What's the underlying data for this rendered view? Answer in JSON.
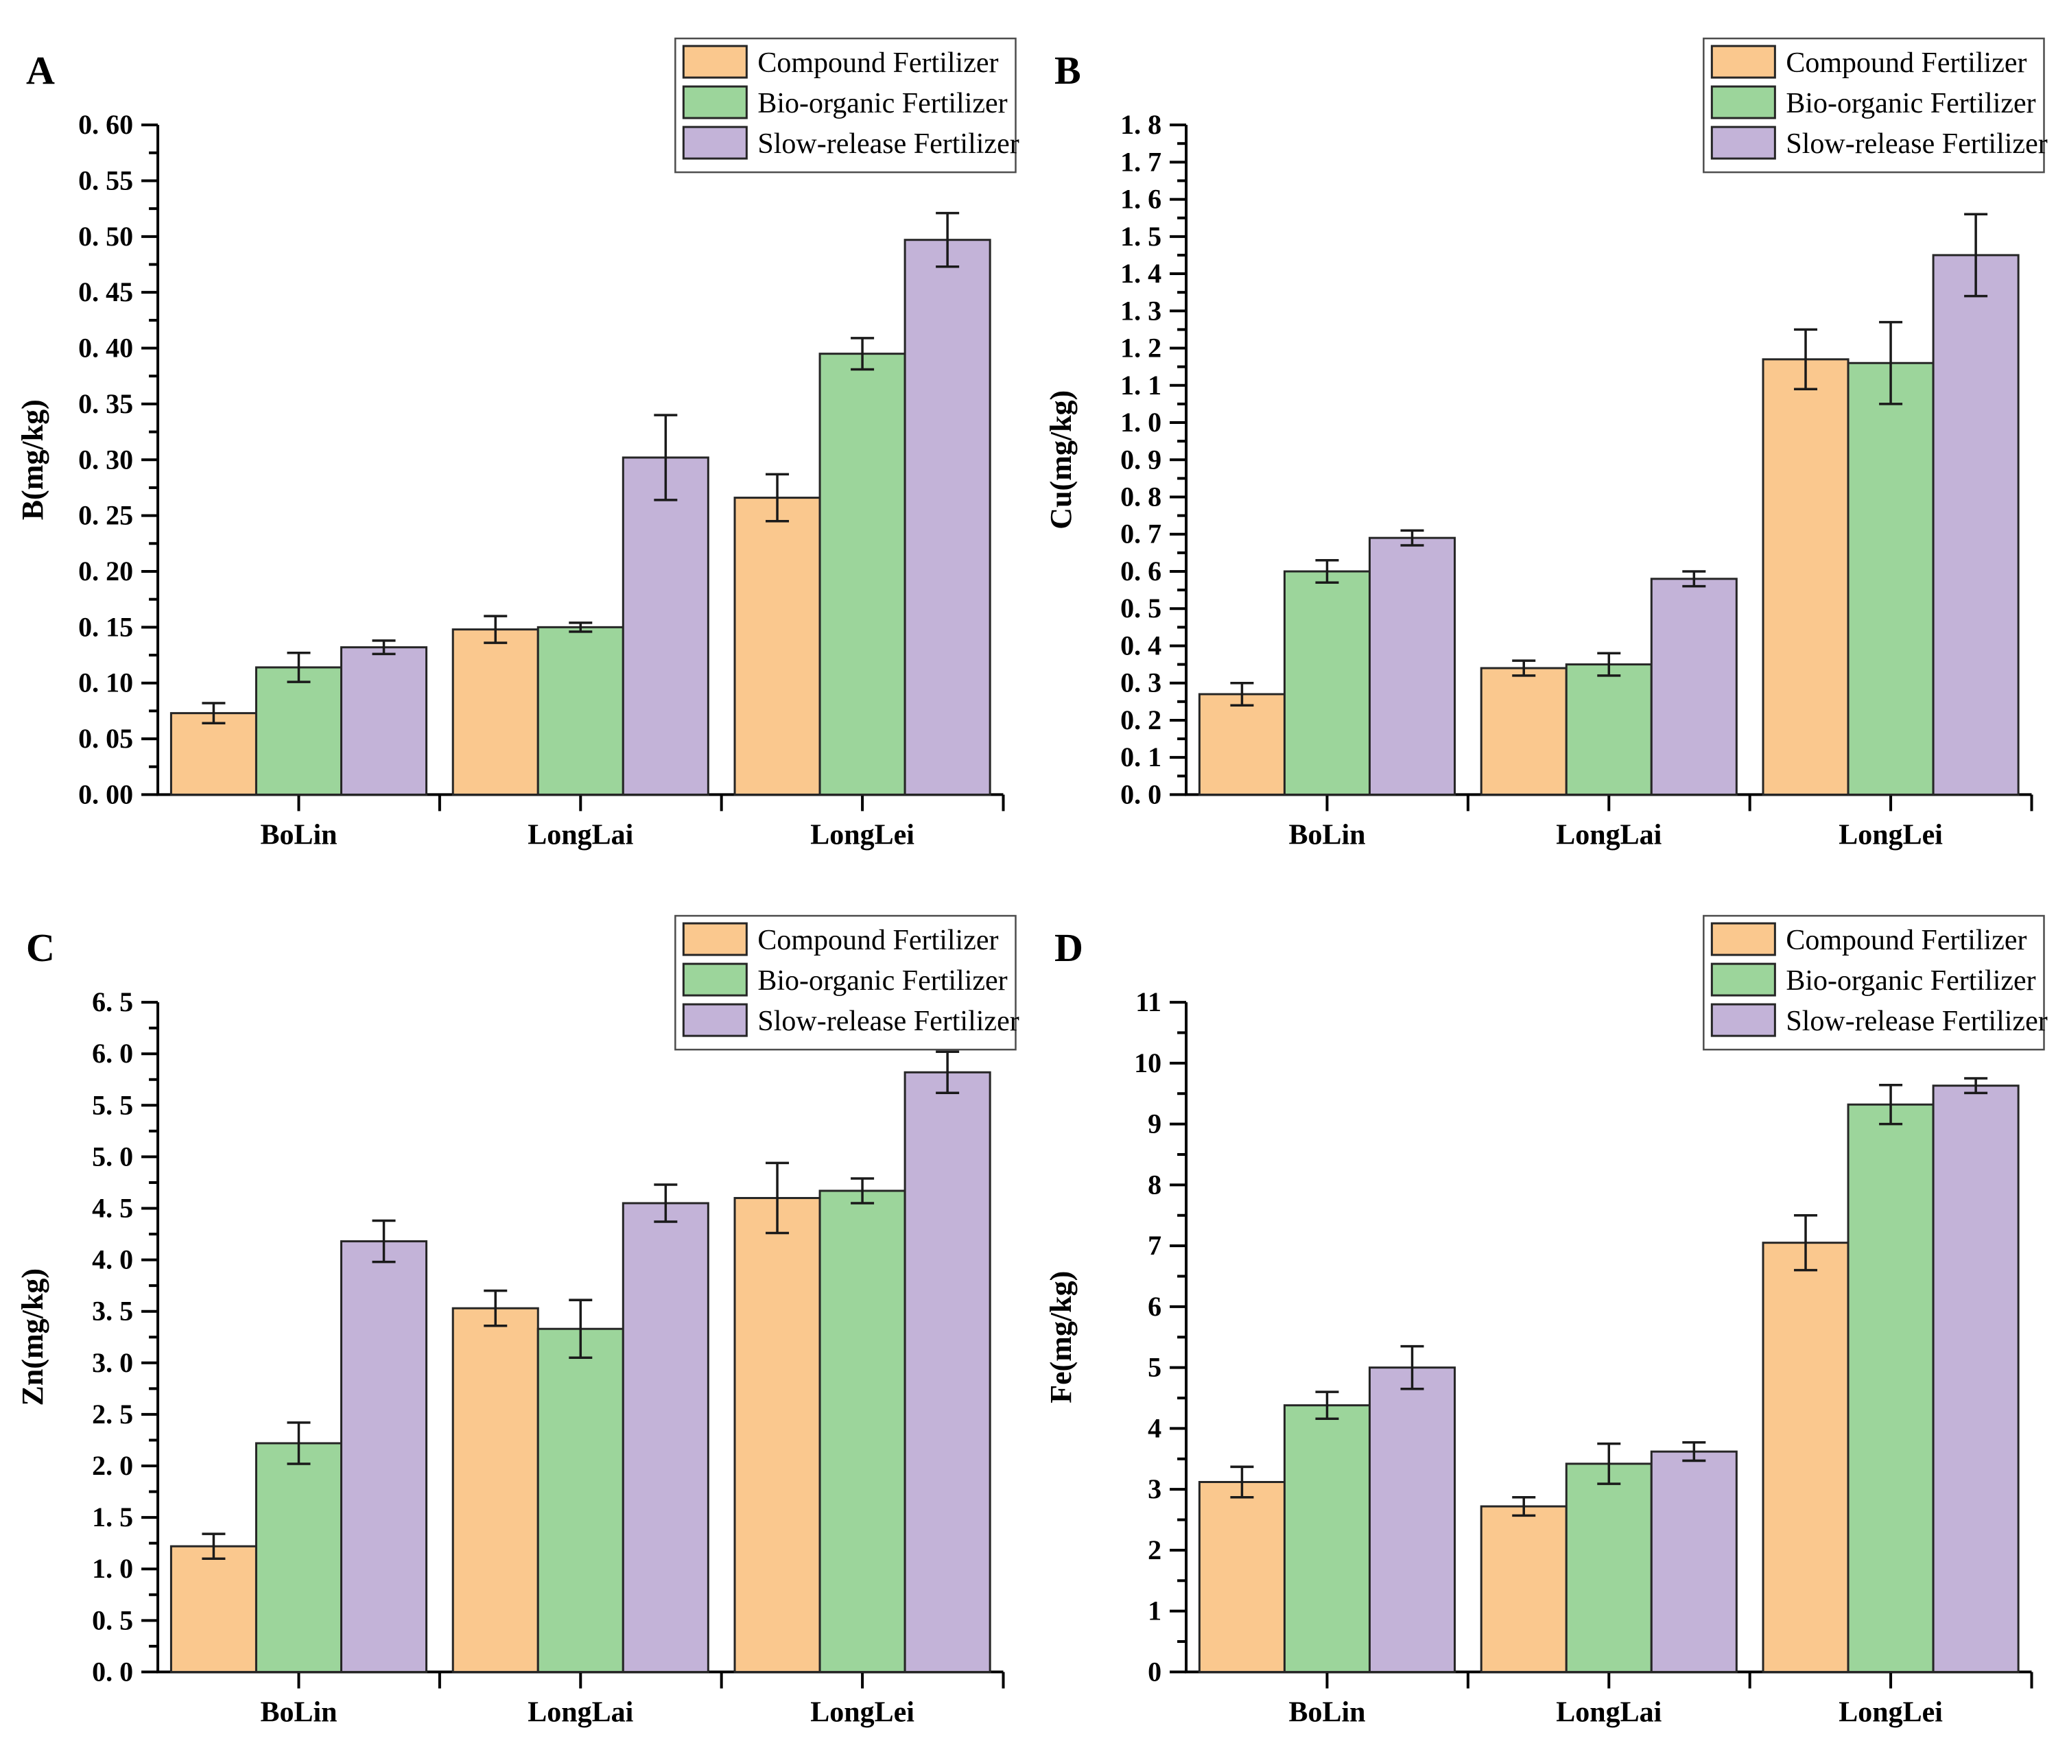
{
  "figure_title": "",
  "legend": {
    "entries": [
      "Compound Fertilizer",
      "Bio-organic Fertilizer",
      "Slow-release Fertilizer"
    ],
    "position": "top-right",
    "border_color": "#4d4d4d",
    "background": "#ffffff"
  },
  "colors": {
    "series_fills": [
      "#FAC88E",
      "#9CD59B",
      "#C3B3D8"
    ],
    "bar_border": "#262626",
    "axis": "#000000",
    "error_bar": "#1a1a1a",
    "text": "#000000"
  },
  "categories": [
    "BoLin",
    "LongLai",
    "LongLei"
  ],
  "chart_data": [
    {
      "panel": "A",
      "type": "bar",
      "ylabel": "B(mg/kg)",
      "xlabel": "",
      "ylim": [
        0,
        0.6
      ],
      "ytick_step": 0.05,
      "grid": false,
      "ytick_labels": [
        "0. 00",
        "0. 05",
        "0. 10",
        "0. 15",
        "0. 20",
        "0. 25",
        "0. 30",
        "0. 35",
        "0. 40",
        "0. 45",
        "0. 50",
        "0. 55",
        "0. 60"
      ],
      "categories": [
        "BoLin",
        "LongLai",
        "LongLei"
      ],
      "series": [
        {
          "name": "Compound Fertilizer",
          "values": [
            0.073,
            0.148,
            0.266
          ],
          "errors": [
            0.009,
            0.012,
            0.021
          ]
        },
        {
          "name": "Bio-organic Fertilizer",
          "values": [
            0.114,
            0.15,
            0.395
          ],
          "errors": [
            0.013,
            0.004,
            0.014
          ]
        },
        {
          "name": "Slow-release Fertilizer",
          "values": [
            0.132,
            0.302,
            0.497
          ],
          "errors": [
            0.006,
            0.038,
            0.024
          ]
        }
      ]
    },
    {
      "panel": "B",
      "type": "bar",
      "ylabel": "Cu(mg/kg)",
      "xlabel": "",
      "ylim": [
        0,
        1.8
      ],
      "ytick_step": 0.1,
      "grid": false,
      "ytick_labels": [
        "0. 0",
        "0. 1",
        "0. 2",
        "0. 3",
        "0. 4",
        "0. 5",
        "0. 6",
        "0. 7",
        "0. 8",
        "0. 9",
        "1. 0",
        "1. 1",
        "1. 2",
        "1. 3",
        "1. 4",
        "1. 5",
        "1. 6",
        "1. 7",
        "1. 8"
      ],
      "categories": [
        "BoLin",
        "LongLai",
        "LongLei"
      ],
      "series": [
        {
          "name": "Compound Fertilizer",
          "values": [
            0.27,
            0.34,
            1.17
          ],
          "errors": [
            0.03,
            0.02,
            0.08
          ]
        },
        {
          "name": "Bio-organic Fertilizer",
          "values": [
            0.6,
            0.35,
            1.16
          ],
          "errors": [
            0.03,
            0.03,
            0.11
          ]
        },
        {
          "name": "Slow-release Fertilizer",
          "values": [
            0.69,
            0.58,
            1.45
          ],
          "errors": [
            0.02,
            0.02,
            0.11
          ]
        }
      ]
    },
    {
      "panel": "C",
      "type": "bar",
      "ylabel": "Zn(mg/kg)",
      "xlabel": "",
      "ylim": [
        0,
        6.5
      ],
      "ytick_step": 0.5,
      "grid": false,
      "ytick_labels": [
        "0. 0",
        "0. 5",
        "1. 0",
        "1. 5",
        "2. 0",
        "2. 5",
        "3. 0",
        "3. 5",
        "4. 0",
        "4. 5",
        "5. 0",
        "5. 5",
        "6. 0",
        "6. 5"
      ],
      "categories": [
        "BoLin",
        "LongLai",
        "LongLei"
      ],
      "series": [
        {
          "name": "Compound Fertilizer",
          "values": [
            1.22,
            3.53,
            4.6
          ],
          "errors": [
            0.12,
            0.17,
            0.34
          ]
        },
        {
          "name": "Bio-organic Fertilizer",
          "values": [
            2.22,
            3.33,
            4.67
          ],
          "errors": [
            0.2,
            0.28,
            0.12
          ]
        },
        {
          "name": "Slow-release Fertilizer",
          "values": [
            4.18,
            4.55,
            5.82
          ],
          "errors": [
            0.2,
            0.18,
            0.2
          ]
        }
      ]
    },
    {
      "panel": "D",
      "type": "bar",
      "ylabel": "Fe(mg/kg)",
      "xlabel": "",
      "ylim": [
        0,
        11
      ],
      "ytick_step": 1,
      "grid": false,
      "ytick_labels": [
        "0",
        "1",
        "2",
        "3",
        "4",
        "5",
        "6",
        "7",
        "8",
        "9",
        "10",
        "11"
      ],
      "categories": [
        "BoLin",
        "LongLai",
        "LongLei"
      ],
      "series": [
        {
          "name": "Compound Fertilizer",
          "values": [
            3.12,
            2.72,
            7.05
          ],
          "errors": [
            0.25,
            0.15,
            0.45
          ]
        },
        {
          "name": "Bio-organic Fertilizer",
          "values": [
            4.38,
            3.42,
            9.32
          ],
          "errors": [
            0.22,
            0.33,
            0.32
          ]
        },
        {
          "name": "Slow-release Fertilizer",
          "values": [
            5.0,
            3.62,
            9.63
          ],
          "errors": [
            0.35,
            0.15,
            0.12
          ]
        }
      ]
    }
  ]
}
